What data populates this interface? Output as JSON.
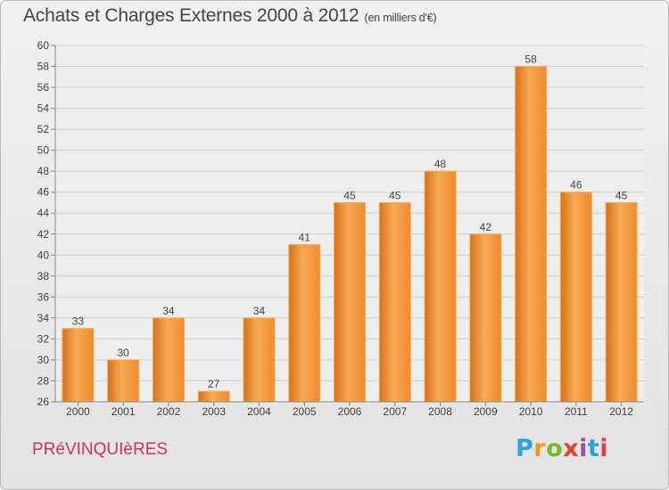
{
  "title": "Achats et Charges Externes 2000 à 2012",
  "unit_note": "(en milliers d'€)",
  "commune": "PRéVINQUIèRES",
  "logo": {
    "letters": [
      "P",
      "r",
      "o",
      "x",
      "i",
      "t",
      "i"
    ],
    "colors": [
      "#2aa3d8",
      "#f39a1e",
      "#7ab929",
      "#e8422f",
      "#9c4fa0",
      "#2aa3d8",
      "#e8422f"
    ]
  },
  "colors": {
    "bar": "#f08a2c",
    "bar_light": "#f7aa55",
    "bar_dark": "#d8701a"
  },
  "chart_data": {
    "type": "bar",
    "categories": [
      "2000",
      "2001",
      "2002",
      "2003",
      "2004",
      "2005",
      "2006",
      "2007",
      "2008",
      "2009",
      "2010",
      "2011",
      "2012"
    ],
    "values": [
      33,
      30,
      34,
      27,
      34,
      41,
      45,
      45,
      48,
      42,
      58,
      46,
      45
    ],
    "ylim": [
      26,
      60
    ],
    "yticks": [
      26,
      28,
      30,
      32,
      34,
      36,
      38,
      40,
      42,
      44,
      46,
      48,
      50,
      52,
      54,
      56,
      58,
      60
    ],
    "grid": true
  }
}
